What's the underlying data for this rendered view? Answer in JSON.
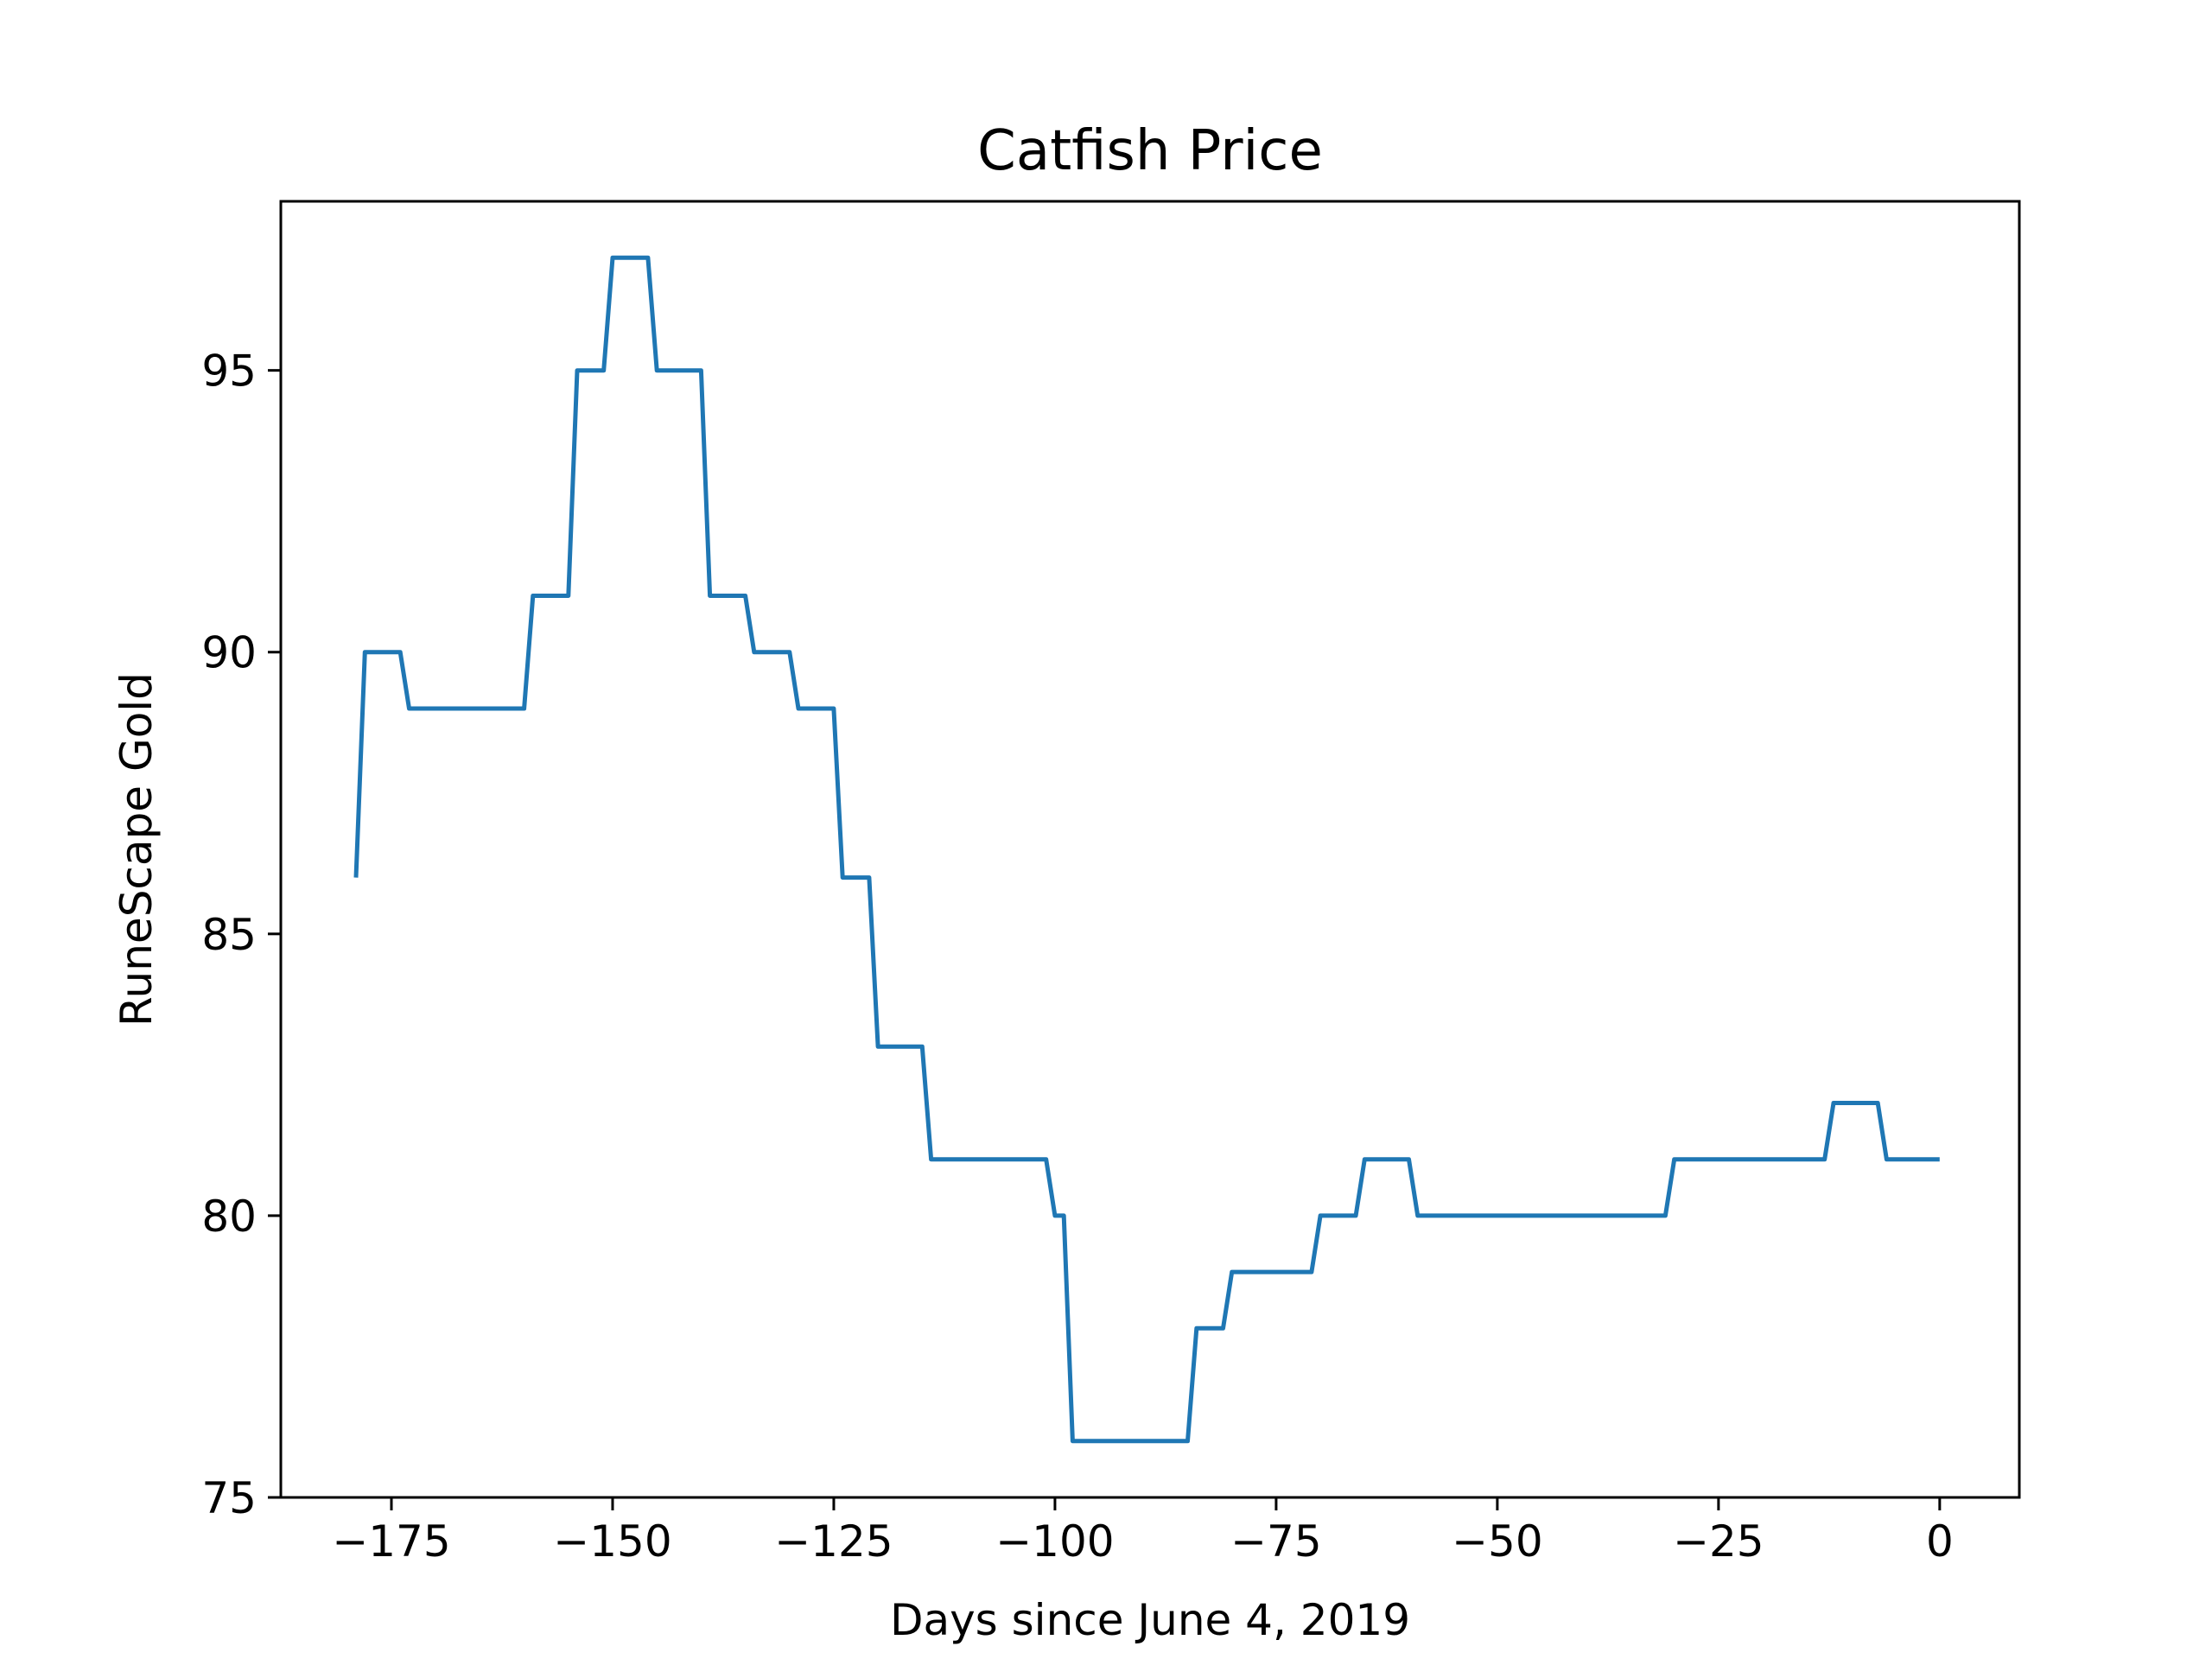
{
  "chart_data": {
    "type": "line",
    "title": "Catfish Price",
    "xlabel": "Days since June 4, 2019",
    "ylabel": "RuneScape Gold",
    "xlim": [
      -187.5,
      9
    ],
    "ylim": [
      75,
      98
    ],
    "xticks": [
      -175,
      -150,
      -125,
      -100,
      -75,
      -50,
      -25,
      0
    ],
    "xtick_labels": [
      "−175",
      "−150",
      "−125",
      "−100",
      "−75",
      "−50",
      "−25",
      "0"
    ],
    "yticks": [
      75,
      80,
      85,
      90,
      95
    ],
    "ytick_labels": [
      "75",
      "80",
      "85",
      "90",
      "95"
    ],
    "grid": false,
    "series": [
      {
        "color": "#1f77b4",
        "points": [
          [
            -179,
            86
          ],
          [
            -178,
            90
          ],
          [
            -174,
            90
          ],
          [
            -173,
            89
          ],
          [
            -160,
            89
          ],
          [
            -159,
            91
          ],
          [
            -155,
            91
          ],
          [
            -154,
            95
          ],
          [
            -151,
            95
          ],
          [
            -150,
            97
          ],
          [
            -146,
            97
          ],
          [
            -145,
            95
          ],
          [
            -140,
            95
          ],
          [
            -139,
            91
          ],
          [
            -135,
            91
          ],
          [
            -134,
            90
          ],
          [
            -130,
            90
          ],
          [
            -129,
            89
          ],
          [
            -125,
            89
          ],
          [
            -124,
            86
          ],
          [
            -121,
            86
          ],
          [
            -120,
            83
          ],
          [
            -115,
            83
          ],
          [
            -114,
            81
          ],
          [
            -101,
            81
          ],
          [
            -100,
            80
          ],
          [
            -99,
            80
          ],
          [
            -98,
            76
          ],
          [
            -85,
            76
          ],
          [
            -84,
            78
          ],
          [
            -81,
            78
          ],
          [
            -80,
            79
          ],
          [
            -71,
            79
          ],
          [
            -70,
            80
          ],
          [
            -66,
            80
          ],
          [
            -65,
            81
          ],
          [
            -60,
            81
          ],
          [
            -59,
            80
          ],
          [
            -31,
            80
          ],
          [
            -30,
            81
          ],
          [
            -13,
            81
          ],
          [
            -12,
            82
          ],
          [
            -7,
            82
          ],
          [
            -6,
            81
          ],
          [
            0,
            81
          ]
        ]
      }
    ]
  }
}
